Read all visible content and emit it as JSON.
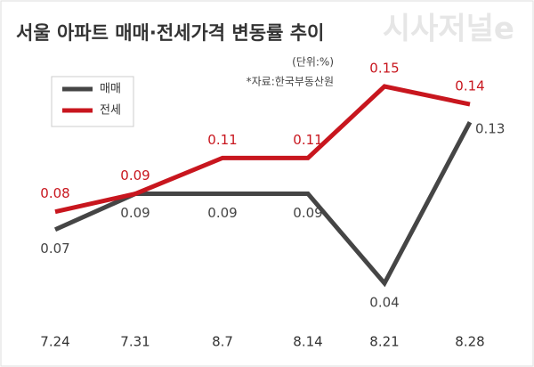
{
  "chart_data": {
    "type": "line",
    "title": "서울 아파트 매매·전세가격 변동률 추이",
    "unit": "(단위:%)",
    "source": "*자료:한국부동산원",
    "logo": "시사저널e",
    "categories": [
      "7.24",
      "7.31",
      "8.7",
      "8.14",
      "8.21",
      "8.28"
    ],
    "series": [
      {
        "name": "매매",
        "color": "#454545",
        "values": [
          0.07,
          0.09,
          0.09,
          0.09,
          0.04,
          0.13
        ]
      },
      {
        "name": "전세",
        "color": "#c8161e",
        "values": [
          0.08,
          0.09,
          0.11,
          0.11,
          0.15,
          0.14
        ]
      }
    ]
  }
}
